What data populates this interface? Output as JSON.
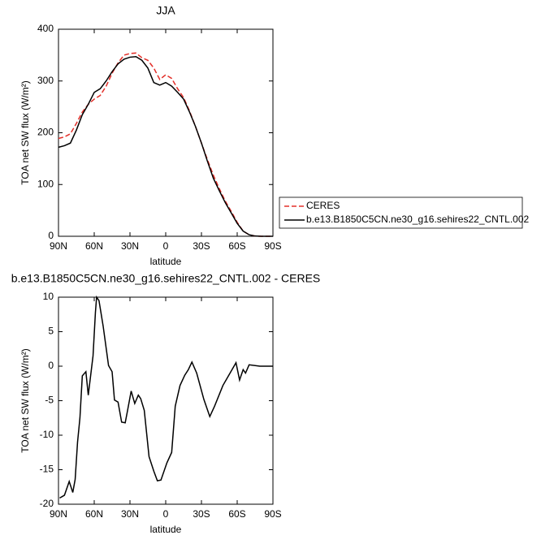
{
  "chart_data": [
    {
      "type": "line",
      "title": "JJA",
      "xlabel": "latitude",
      "ylabel": "TOA net SW flux (W/m²)",
      "x": [
        90,
        85,
        80,
        75,
        70,
        65,
        60,
        55,
        50,
        45,
        40,
        35,
        30,
        25,
        20,
        15,
        10,
        5,
        0,
        -5,
        -10,
        -15,
        -20,
        -25,
        -30,
        -35,
        -40,
        -45,
        -50,
        -55,
        -60,
        -65,
        -70,
        -75,
        -80,
        -85,
        -90
      ],
      "series": [
        {
          "name": "CERES",
          "color": "#e3302a",
          "style": "dashed",
          "values": [
            189,
            192,
            198,
            218,
            240,
            255,
            265,
            272,
            290,
            315,
            335,
            350,
            353,
            354,
            345,
            340,
            325,
            303,
            312,
            305,
            285,
            268,
            242,
            212,
            180,
            148,
            118,
            92,
            68,
            48,
            27,
            10,
            3,
            0.5,
            0,
            0,
            0
          ]
        },
        {
          "name": "b.e13.B1850C5CN.ne30_g16.sehires22_CNTL.002",
          "color": "#000000",
          "style": "solid",
          "values": [
            172,
            175,
            180,
            205,
            235,
            255,
            278,
            285,
            300,
            318,
            333,
            342,
            346,
            347,
            340,
            325,
            297,
            292,
            297,
            290,
            278,
            265,
            240,
            212,
            180,
            145,
            112,
            88,
            65,
            45,
            25,
            10,
            3,
            0.5,
            0,
            0,
            0
          ]
        }
      ],
      "xlim": [
        90,
        -90
      ],
      "xticks": [
        {
          "value": 90,
          "label": "90N"
        },
        {
          "value": 60,
          "label": "60N"
        },
        {
          "value": 30,
          "label": "30N"
        },
        0,
        {
          "value": -30,
          "label": "30S"
        },
        {
          "value": -60,
          "label": "60S"
        },
        {
          "value": -90,
          "label": "90S"
        }
      ],
      "ylim": [
        0,
        400
      ],
      "yticks": [
        0,
        100,
        200,
        300,
        400
      ],
      "legend": "outside-right"
    },
    {
      "type": "line",
      "title": "b.e13.B1850C5CN.ne30_g16.sehires22_CNTL.002 - CERES",
      "xlabel": "latitude",
      "ylabel": "TOA net SW flux (W/m²)",
      "x": [
        89,
        85,
        81,
        78,
        76,
        74,
        72,
        70,
        67,
        65,
        61,
        59,
        58,
        56,
        52.5,
        48,
        45,
        43,
        40,
        37,
        34,
        32,
        29,
        26,
        23,
        21,
        18,
        14,
        10,
        7,
        4,
        -1,
        -5,
        -8,
        -12,
        -16,
        -19,
        -22,
        -26,
        -32,
        -37,
        -41,
        -48,
        -54,
        -58,
        -59,
        -62,
        -65,
        -67,
        -70,
        -79,
        -90
      ],
      "series": [
        {
          "name": "b.e13.B1850C5CN.ne30_g16.sehires22_CNTL.002 - CERES",
          "color": "#000000",
          "style": "solid",
          "values": [
            -19.1,
            -18.7,
            -16.7,
            -18.3,
            -16.4,
            -11,
            -7.5,
            -1.4,
            -0.8,
            -4.2,
            1.5,
            7.8,
            10,
            9.5,
            5.8,
            0.1,
            -0.8,
            -4.9,
            -5.2,
            -8.1,
            -8.2,
            -6.4,
            -3.6,
            -5.4,
            -4.2,
            -4.7,
            -6.4,
            -13.1,
            -15.2,
            -16.6,
            -16.5,
            -14,
            -12.5,
            -5.8,
            -2.8,
            -1.3,
            -0.5,
            0.6,
            -1,
            -4.8,
            -7.3,
            -5.8,
            -2.8,
            -1,
            0.2,
            0.5,
            -2,
            -0.5,
            -1,
            0.2,
            0,
            0
          ]
        }
      ],
      "xlim": [
        90,
        -90
      ],
      "xticks": [
        {
          "value": 90,
          "label": "90N"
        },
        {
          "value": 60,
          "label": "60N"
        },
        {
          "value": 30,
          "label": "30N"
        },
        0,
        {
          "value": -30,
          "label": "30S"
        },
        {
          "value": -60,
          "label": "60S"
        },
        {
          "value": -90,
          "label": "90S"
        }
      ],
      "ylim": [
        -20,
        10
      ],
      "yticks": [
        -20,
        -15,
        -10,
        -5,
        0,
        5,
        10
      ]
    }
  ]
}
